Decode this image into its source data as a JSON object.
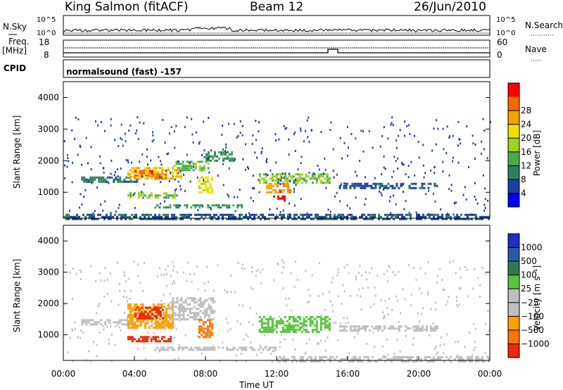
{
  "header": {
    "station": "King Salmon (fitACF)",
    "beam": "Beam 12",
    "date": "26/Jun/2010"
  },
  "sky_panel": {
    "left_label": "N.Sky",
    "right_label": "N.Search",
    "tick_top": "10^5",
    "tick_bottom": "10^0",
    "tick_top_right": "10^5",
    "tick_bottom_right": "10^0"
  },
  "freq_panel": {
    "left_label_1": "Freq.",
    "left_label_2": "[MHz]",
    "tick_top": "18",
    "tick_bottom": "8",
    "right_label": "Nave",
    "tick_top_right": "60",
    "tick_bottom_right": "0"
  },
  "cpid_panel": {
    "label": "CPID",
    "mode_text": "normalsound (fast) -157"
  },
  "colors": {
    "power_scale": [
      "#0000ff",
      "#1f3fa0",
      "#2f7f5f",
      "#47ab4f",
      "#9fd21f",
      "#f0e000",
      "#f3a300",
      "#f56a00",
      "#ff0000"
    ],
    "velocity_scale": [
      "#2030c0",
      "#2858a8",
      "#2e7a4c",
      "#55c43c",
      "#bfbfbf",
      "#bfbfbf",
      "#ffa000",
      "#ff7400",
      "#ee2800"
    ]
  },
  "chart_data": [
    {
      "type": "heatmap",
      "name": "power-panel",
      "title": "",
      "ylabel": "Slant Range [km]",
      "xlabel": "",
      "ylim": [
        180,
        4500
      ],
      "xlim": [
        0,
        24
      ],
      "y_ticks": [
        1000,
        2000,
        3000,
        4000
      ],
      "y_tick_labels": [
        "1000",
        "2000",
        "3000",
        "4000"
      ],
      "colorbar": {
        "label": "Power [dB]",
        "ticks": [
          "4",
          "8",
          "12",
          "16",
          "20",
          "24",
          "28"
        ],
        "range": [
          0,
          30
        ]
      },
      "regions": [
        {
          "t0": 1.0,
          "t1": 4.2,
          "r0": 1300,
          "r1": 1500,
          "level": 8
        },
        {
          "t0": 3.6,
          "t1": 6.6,
          "r0": 1400,
          "r1": 1800,
          "level": 20
        },
        {
          "t0": 4.0,
          "t1": 5.0,
          "r0": 1500,
          "r1": 1700,
          "level": 26
        },
        {
          "t0": 5.0,
          "t1": 5.8,
          "r0": 1450,
          "r1": 1600,
          "level": 24
        },
        {
          "t0": 3.6,
          "t1": 6.4,
          "r0": 800,
          "r1": 1000,
          "level": 14
        },
        {
          "t0": 6.2,
          "t1": 8.2,
          "r0": 1700,
          "r1": 2000,
          "level": 12
        },
        {
          "t0": 7.6,
          "t1": 8.4,
          "r0": 1000,
          "r1": 1500,
          "level": 18
        },
        {
          "t0": 8.0,
          "t1": 9.6,
          "r0": 2000,
          "r1": 2300,
          "level": 10
        },
        {
          "t0": 11.0,
          "t1": 15.0,
          "r0": 1300,
          "r1": 1600,
          "level": 14
        },
        {
          "t0": 11.4,
          "t1": 12.8,
          "r0": 1000,
          "r1": 1300,
          "level": 22
        },
        {
          "t0": 11.8,
          "t1": 12.4,
          "r0": 750,
          "r1": 900,
          "level": 28
        },
        {
          "t0": 15.5,
          "t1": 21.0,
          "r0": 1100,
          "r1": 1300,
          "level": 6
        },
        {
          "t0": 5.0,
          "t1": 10.0,
          "r0": 500,
          "r1": 620,
          "level": 10
        },
        {
          "t0": 0.0,
          "t1": 24.0,
          "r0": 180,
          "r1": 320,
          "level": 6
        }
      ]
    },
    {
      "type": "heatmap",
      "name": "velocity-panel",
      "title": "",
      "ylabel": "Slant Range [km]",
      "xlabel": "Time UT",
      "ylim": [
        180,
        4500
      ],
      "xlim": [
        0,
        24
      ],
      "y_ticks": [
        1000,
        2000,
        3000,
        4000
      ],
      "y_tick_labels": [
        "1000",
        "2000",
        "3000",
        "4000"
      ],
      "x_tick_labels": [
        "00:00",
        "04:00",
        "08:00",
        "12:00",
        "16:00",
        "20:00",
        "00:00"
      ],
      "colorbar": {
        "label": "Velocity [m s⁻¹]",
        "ticks": [
          "1000",
          "500",
          "100",
          "25",
          "−25",
          "−100",
          "−500",
          "−1000"
        ],
        "range": [
          -1000,
          1000
        ]
      },
      "regions": [
        {
          "t0": 1.0,
          "t1": 4.0,
          "r0": 1300,
          "r1": 1500,
          "level": 0
        },
        {
          "t0": 3.6,
          "t1": 6.2,
          "r0": 1200,
          "r1": 2000,
          "level": -500
        },
        {
          "t0": 4.0,
          "t1": 5.6,
          "r0": 1500,
          "r1": 1900,
          "level": -800
        },
        {
          "t0": 3.6,
          "t1": 6.0,
          "r0": 760,
          "r1": 960,
          "level": -900
        },
        {
          "t0": 6.0,
          "t1": 8.4,
          "r0": 1500,
          "r1": 2200,
          "level": 0
        },
        {
          "t0": 7.6,
          "t1": 8.4,
          "r0": 900,
          "r1": 1500,
          "level": -600
        },
        {
          "t0": 11.0,
          "t1": 15.0,
          "r0": 1100,
          "r1": 1600,
          "level": 300
        },
        {
          "t0": 15.4,
          "t1": 21.0,
          "r0": 1100,
          "r1": 1300,
          "level": 80
        },
        {
          "t0": 5.0,
          "t1": 12.0,
          "r0": 500,
          "r1": 620,
          "level": -150
        },
        {
          "t0": 12.0,
          "t1": 24.0,
          "r0": 180,
          "r1": 320,
          "level": 60
        }
      ]
    }
  ],
  "time_axis_label": "Time UT"
}
